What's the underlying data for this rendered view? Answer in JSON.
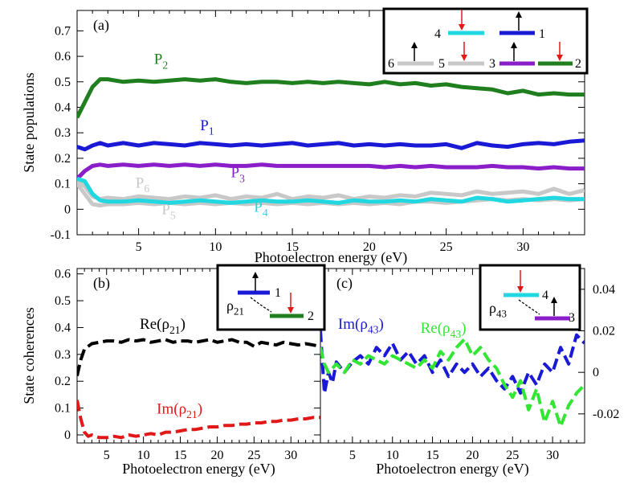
{
  "colors": {
    "P1": "#1a1ad6",
    "P2": "#1f7f1f",
    "P3": "#8a1fc9",
    "P4": "#22d8e0",
    "P5": "#c8c8c8",
    "P6": "#c8c8c8",
    "re21": "#000000",
    "im21": "#e01818",
    "im43": "#1a1ad6",
    "re43": "#33e633",
    "arrow_red": "#e01818"
  },
  "chart_data": [
    {
      "id": "a",
      "type": "line",
      "panel_label": "(a)",
      "xlabel": "Photoelectron energy (eV)",
      "ylabel": "State populations",
      "xlim": [
        1.0,
        34.0
      ],
      "ylim": [
        -0.1,
        0.78
      ],
      "x_ticks": [
        5,
        10,
        15,
        20,
        25,
        30
      ],
      "y_ticks": [
        -0.1,
        0,
        0.1,
        0.2,
        0.3,
        0.4,
        0.5,
        0.6,
        0.7
      ],
      "y_tick_labels": [
        "-0.1",
        "0",
        "0.1",
        "0.2",
        "0.3",
        "0.4",
        "0.5",
        "0.6",
        "0.7"
      ],
      "x": [
        1.0,
        1.5,
        2.0,
        2.5,
        3.0,
        4,
        5,
        6,
        7,
        8,
        9,
        10,
        11,
        12,
        13,
        14,
        15,
        16,
        17,
        18,
        19,
        20,
        21,
        22,
        23,
        24,
        25,
        26,
        27,
        28,
        29,
        30,
        31,
        32,
        33,
        34
      ],
      "series": [
        {
          "name": "P2",
          "label": "P",
          "sub": "2",
          "style": "solid",
          "values": [
            0.36,
            0.42,
            0.48,
            0.51,
            0.51,
            0.5,
            0.505,
            0.5,
            0.505,
            0.51,
            0.505,
            0.51,
            0.5,
            0.495,
            0.5,
            0.5,
            0.495,
            0.5,
            0.495,
            0.5,
            0.495,
            0.49,
            0.5,
            0.49,
            0.495,
            0.485,
            0.49,
            0.48,
            0.475,
            0.47,
            0.455,
            0.465,
            0.45,
            0.455,
            0.45,
            0.45
          ]
        },
        {
          "name": "P1",
          "label": "P",
          "sub": "1",
          "style": "solid",
          "values": [
            0.245,
            0.235,
            0.25,
            0.26,
            0.25,
            0.26,
            0.25,
            0.26,
            0.255,
            0.25,
            0.26,
            0.255,
            0.25,
            0.255,
            0.25,
            0.255,
            0.26,
            0.25,
            0.255,
            0.26,
            0.25,
            0.255,
            0.25,
            0.255,
            0.25,
            0.25,
            0.255,
            0.24,
            0.26,
            0.25,
            0.245,
            0.255,
            0.26,
            0.255,
            0.265,
            0.27
          ]
        },
        {
          "name": "P3",
          "label": "P",
          "sub": "3",
          "style": "solid",
          "values": [
            0.12,
            0.15,
            0.17,
            0.175,
            0.17,
            0.175,
            0.17,
            0.175,
            0.17,
            0.175,
            0.17,
            0.175,
            0.17,
            0.17,
            0.175,
            0.17,
            0.17,
            0.17,
            0.17,
            0.17,
            0.17,
            0.17,
            0.165,
            0.17,
            0.165,
            0.17,
            0.165,
            0.165,
            0.165,
            0.17,
            0.165,
            0.165,
            0.16,
            0.165,
            0.16,
            0.16
          ]
        },
        {
          "name": "P6",
          "label": "P",
          "sub": "6",
          "style": "solid",
          "values": [
            0.11,
            0.09,
            0.05,
            0.04,
            0.045,
            0.04,
            0.05,
            0.045,
            0.04,
            0.05,
            0.045,
            0.055,
            0.04,
            0.05,
            0.045,
            0.06,
            0.04,
            0.05,
            0.045,
            0.055,
            0.04,
            0.05,
            0.045,
            0.055,
            0.05,
            0.065,
            0.06,
            0.055,
            0.07,
            0.06,
            0.065,
            0.07,
            0.06,
            0.08,
            0.06,
            0.075
          ]
        },
        {
          "name": "P5",
          "label": "P",
          "sub": "5",
          "style": "solid",
          "values": [
            0.1,
            0.06,
            0.02,
            0.015,
            0.02,
            0.02,
            0.025,
            0.02,
            0.025,
            0.02,
            0.025,
            0.02,
            0.025,
            0.02,
            0.025,
            0.02,
            0.025,
            0.02,
            0.025,
            0.02,
            0.025,
            0.02,
            0.025,
            0.02,
            0.03,
            0.03,
            0.025,
            0.03,
            0.035,
            0.04,
            0.035,
            0.04,
            0.035,
            0.04,
            0.035,
            0.04
          ]
        },
        {
          "name": "P4",
          "label": "P",
          "sub": "4",
          "style": "solid",
          "values": [
            0.12,
            0.11,
            0.06,
            0.035,
            0.03,
            0.03,
            0.035,
            0.03,
            0.025,
            0.03,
            0.035,
            0.03,
            0.025,
            0.03,
            0.035,
            0.03,
            0.03,
            0.035,
            0.03,
            0.025,
            0.035,
            0.03,
            0.03,
            0.035,
            0.03,
            0.04,
            0.035,
            0.03,
            0.045,
            0.04,
            0.03,
            0.035,
            0.04,
            0.045,
            0.04,
            0.04
          ]
        }
      ],
      "labels": [
        {
          "series": "P2",
          "text": "P",
          "sub": "2",
          "x": 6.0,
          "y": 0.57
        },
        {
          "series": "P1",
          "text": "P",
          "sub": "1",
          "x": 9.0,
          "y": 0.31
        },
        {
          "series": "P3",
          "text": "P",
          "sub": "3",
          "x": 11.0,
          "y": 0.125
        },
        {
          "series": "P6",
          "text": "P",
          "sub": "6",
          "x": 4.8,
          "y": 0.085
        },
        {
          "series": "P5",
          "text": "P",
          "sub": "5",
          "x": 6.5,
          "y": -0.02
        },
        {
          "series": "P4",
          "text": "P",
          "sub": "4",
          "x": 12.5,
          "y": -0.01
        }
      ],
      "inset_levels": [
        "6",
        "5",
        "3",
        "2",
        "4",
        "1"
      ]
    },
    {
      "id": "b",
      "type": "line",
      "panel_label": "(b)",
      "xlabel": "Photoelectron energy (eV)",
      "ylabel": "State coherences",
      "xlim": [
        1.0,
        34.0
      ],
      "ylim": [
        -0.03,
        0.62
      ],
      "x_ticks": [
        5,
        10,
        15,
        20,
        25,
        30
      ],
      "y_ticks": [
        0,
        0.1,
        0.2,
        0.3,
        0.4,
        0.5,
        0.6
      ],
      "y_tick_labels": [
        "0",
        "0.1",
        "0.2",
        "0.3",
        "0.4",
        "0.5",
        "0.6"
      ],
      "x": [
        1.0,
        1.5,
        2.0,
        2.5,
        3.0,
        4,
        5,
        6,
        7,
        8,
        9,
        10,
        11,
        12,
        13,
        14,
        15,
        16,
        17,
        18,
        19,
        20,
        21,
        22,
        23,
        24,
        25,
        26,
        27,
        28,
        29,
        30,
        31,
        32,
        33,
        34
      ],
      "series": [
        {
          "name": "Re(rho21)",
          "label": "Re(ρ",
          "sub": "21",
          "style": "dashed",
          "color_key": "re21",
          "values": [
            0.22,
            0.28,
            0.32,
            0.33,
            0.34,
            0.345,
            0.35,
            0.35,
            0.345,
            0.355,
            0.35,
            0.355,
            0.345,
            0.35,
            0.355,
            0.345,
            0.35,
            0.35,
            0.345,
            0.35,
            0.355,
            0.345,
            0.35,
            0.355,
            0.345,
            0.345,
            0.33,
            0.345,
            0.34,
            0.335,
            0.345,
            0.34,
            0.335,
            0.34,
            0.335,
            0.33
          ]
        },
        {
          "name": "Im(rho21)",
          "label": "Im(ρ",
          "sub": "21",
          "style": "dashed",
          "color_key": "im21",
          "values": [
            0.13,
            0.06,
            0.01,
            -0.005,
            0.0,
            -0.01,
            -0.01,
            -0.005,
            -0.01,
            0.0,
            -0.005,
            0.0,
            0.005,
            0.0,
            0.01,
            0.01,
            0.015,
            0.02,
            0.02,
            0.025,
            0.03,
            0.03,
            0.035,
            0.035,
            0.04,
            0.04,
            0.045,
            0.045,
            0.05,
            0.05,
            0.055,
            0.055,
            0.06,
            0.06,
            0.065,
            0.065
          ]
        }
      ],
      "labels": [
        {
          "text": "Re(ρ",
          "sub": "21",
          "tail": ")",
          "x": 9.5,
          "y": 0.395,
          "color_key": "re21"
        },
        {
          "text": "Im(ρ",
          "sub": "21",
          "tail": ")",
          "x": 11.8,
          "y": 0.08,
          "color_key": "im21"
        }
      ],
      "inset": {
        "rho": "ρ",
        "rho_sub": "21",
        "levels": [
          "1",
          "2"
        ]
      }
    },
    {
      "id": "c",
      "type": "line",
      "panel_label": "(c)",
      "xlabel": "Photoelectron energy (eV)",
      "ylabel": "",
      "xlim": [
        1.0,
        34.0
      ],
      "ylim": [
        -0.034,
        0.05
      ],
      "x_ticks": [
        5,
        10,
        15,
        20,
        25,
        30
      ],
      "y_ticks": [
        -0.02,
        0,
        0.02,
        0.04
      ],
      "y_tick_labels": [
        "-0.02",
        "0",
        "0.02",
        "0.04"
      ],
      "x": [
        1.0,
        1.5,
        2.0,
        2.5,
        3.0,
        4,
        5,
        6,
        7,
        8,
        9,
        10,
        11,
        12,
        13,
        14,
        15,
        16,
        17,
        18,
        19,
        20,
        21,
        22,
        23,
        24,
        25,
        26,
        27,
        28,
        29,
        30,
        31,
        32,
        33,
        34
      ],
      "series": [
        {
          "name": "Im(rho43)",
          "label": "Im(ρ",
          "sub": "43",
          "style": "dashed",
          "color_key": "im43",
          "values": [
            0.02,
            -0.01,
            0.0,
            -0.005,
            0.005,
            0.0,
            0.005,
            0.008,
            0.004,
            0.012,
            0.008,
            0.014,
            0.006,
            0.01,
            0.004,
            0.008,
            0.0,
            0.006,
            -0.002,
            0.004,
            0.0,
            0.004,
            -0.002,
            0.002,
            -0.004,
            -0.008,
            -0.002,
            -0.01,
            0.0,
            -0.006,
            0.004,
            0.0,
            0.012,
            0.004,
            0.018,
            0.014
          ]
        },
        {
          "name": "Re(rho43)",
          "label": "Re(ρ",
          "sub": "43",
          "style": "dashed",
          "color_key": "re43",
          "values": [
            0.012,
            0.004,
            0.0,
            0.002,
            0.004,
            0.0,
            0.006,
            0.004,
            0.008,
            0.006,
            0.004,
            0.008,
            0.006,
            0.004,
            0.002,
            0.006,
            0.002,
            0.01,
            0.006,
            0.012,
            0.016,
            0.008,
            0.012,
            0.006,
            0.002,
            -0.006,
            -0.012,
            -0.004,
            -0.018,
            -0.008,
            -0.024,
            -0.014,
            -0.026,
            -0.016,
            -0.01,
            -0.006
          ]
        }
      ],
      "labels": [
        {
          "text": "Im(ρ",
          "sub": "43",
          "tail": ")",
          "x": 3.2,
          "y": 0.021,
          "color_key": "im43"
        },
        {
          "text": "Re(ρ",
          "sub": "43",
          "tail": ")",
          "x": 13.5,
          "y": 0.019,
          "color_key": "re43"
        }
      ],
      "inset": {
        "rho": "ρ",
        "rho_sub": "43",
        "levels": [
          "4",
          "3"
        ]
      }
    }
  ]
}
